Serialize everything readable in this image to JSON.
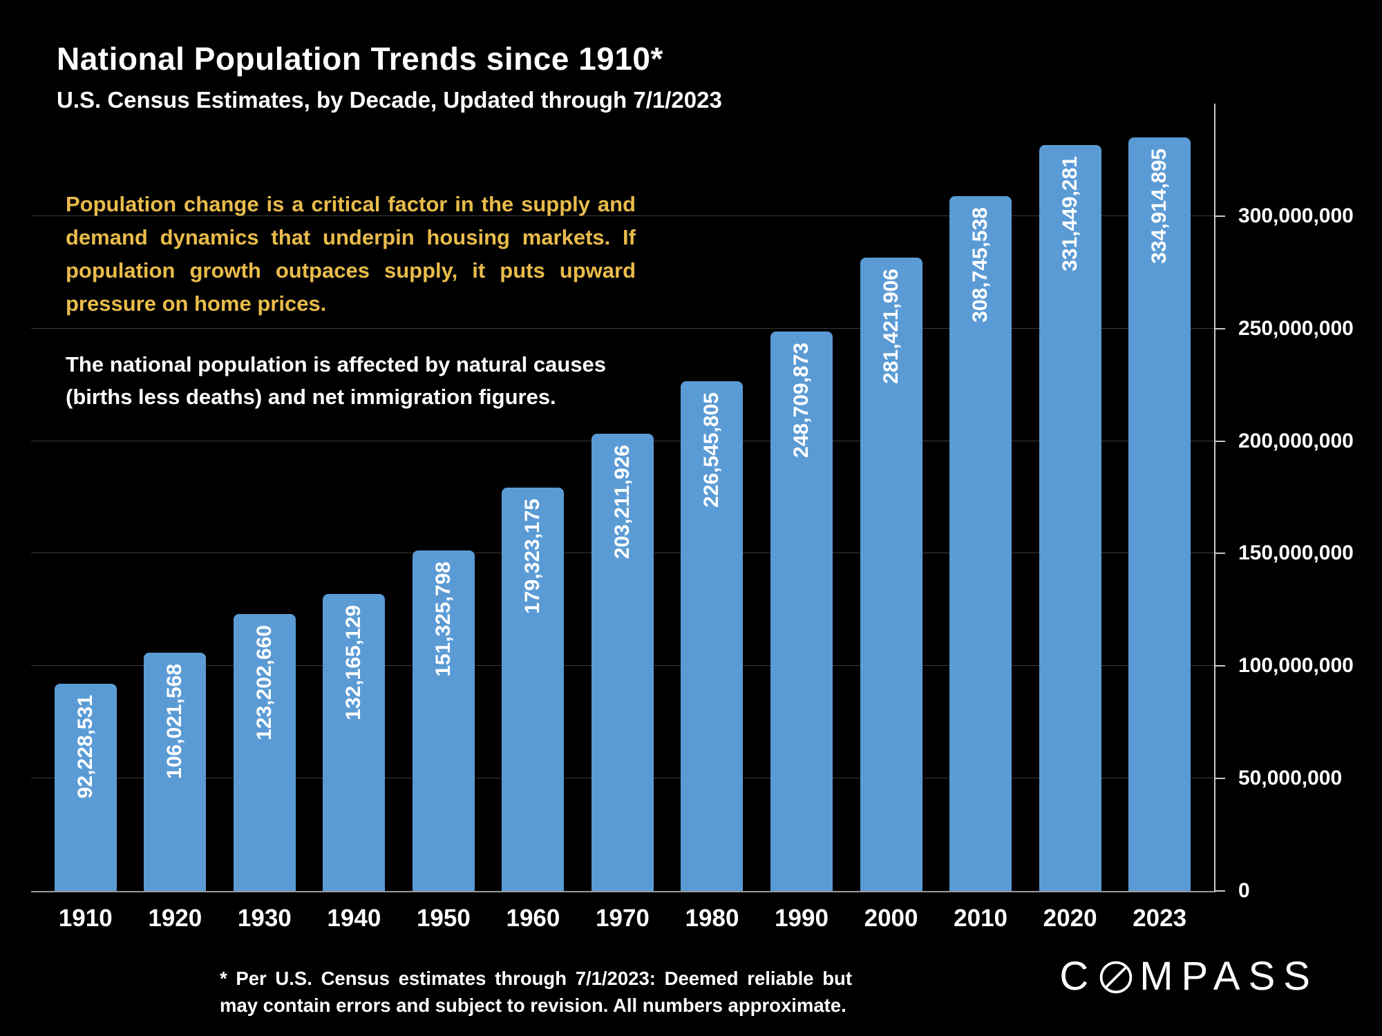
{
  "header": {
    "title": "National Population Trends since 1910*",
    "subtitle": "U.S. Census Estimates, by Decade, Updated through 7/1/2023"
  },
  "annotations": {
    "highlight": "Population change is a critical factor in the supply and demand dynamics that underpin housing markets. If population growth outpaces supply, it puts upward pressure on home prices.",
    "note": "The national population is affected by natural causes (births less deaths) and net immigration figures."
  },
  "chart_data": {
    "type": "bar",
    "title": "National Population Trends since 1910",
    "categories": [
      "1910",
      "1920",
      "1930",
      "1940",
      "1950",
      "1960",
      "1970",
      "1980",
      "1990",
      "2000",
      "2010",
      "2020",
      "2023"
    ],
    "values": [
      92228531,
      106021568,
      123202660,
      132165129,
      151325798,
      179323175,
      203211926,
      226545805,
      248709873,
      281421906,
      308745538,
      331449281,
      334914895
    ],
    "labels": [
      "92,228,531",
      "106,021,568",
      "123,202,660",
      "132,165,129",
      "151,325,798",
      "179,323,175",
      "203,211,926",
      "226,545,805",
      "248,709,873",
      "281,421,906",
      "308,745,538",
      "331,449,281",
      "334,914,895"
    ],
    "xlabel": "",
    "ylabel": "",
    "ylim": [
      0,
      350000000
    ],
    "yticks": [
      0,
      50000000,
      100000000,
      150000000,
      200000000,
      250000000,
      300000000
    ],
    "ytick_labels": [
      "0",
      "50,000,000",
      "100,000,000",
      "150,000,000",
      "200,000,000",
      "250,000,000",
      "300,000,000"
    ],
    "bar_color": "#5b9bd5",
    "grid": true,
    "legend": "none",
    "axis_side": "right"
  },
  "footnote": "* Per U.S. Census estimates through 7/1/2023: Deemed reliable but may contain errors and subject to revision.  All numbers approximate.",
  "logo": {
    "prefix": "C",
    "suffix": "MPASS",
    "name": "COMPASS"
  },
  "colors": {
    "background": "#000000",
    "bar": "#5b9bd5",
    "highlight_text": "#e9bc4b",
    "text": "#ffffff",
    "gridline": "#3c3c3c"
  }
}
